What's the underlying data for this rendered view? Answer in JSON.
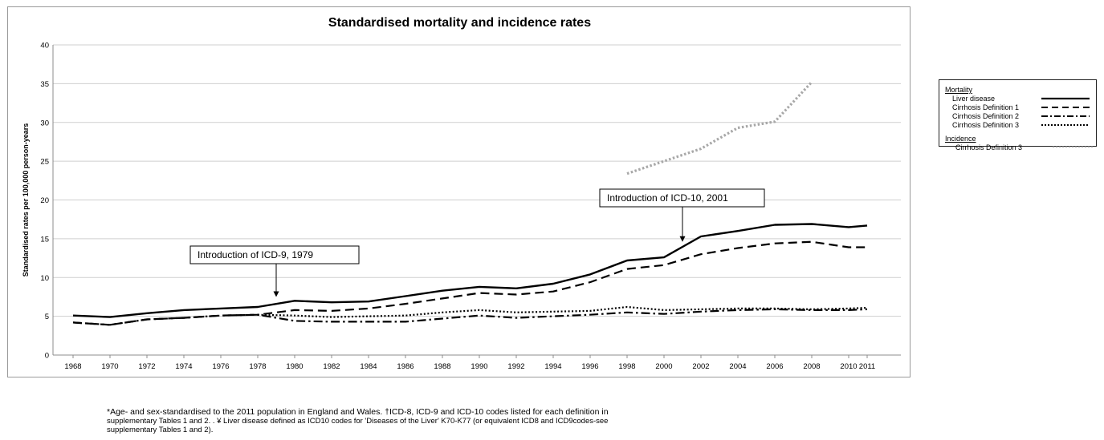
{
  "chart_data": {
    "type": "line",
    "title": "Standardised mortality and incidence rates",
    "ylabel": "Standardised rates per 100,000 person-years",
    "xlabel": "",
    "ylim": [
      0,
      40
    ],
    "yticks": [
      0,
      5,
      10,
      15,
      20,
      25,
      30,
      35,
      40
    ],
    "categories": [
      "1968",
      "1970",
      "1972",
      "1974",
      "1976",
      "1978",
      "1980",
      "1982",
      "1984",
      "1986",
      "1988",
      "1990",
      "1992",
      "1994",
      "1996",
      "1998",
      "2000",
      "2002",
      "2004",
      "2006",
      "2008",
      "2010",
      "2011"
    ],
    "grid": "horizontal",
    "legend_placement": "right",
    "series": [
      {
        "name": "Liver disease",
        "group": "Mortality",
        "style": "solid",
        "color": "#000000",
        "values": [
          5.1,
          4.9,
          5.4,
          5.8,
          6.0,
          6.2,
          7.0,
          6.8,
          6.9,
          7.6,
          8.3,
          8.8,
          8.6,
          9.2,
          10.4,
          12.2,
          12.6,
          15.3,
          16.0,
          16.8,
          16.9,
          16.5,
          16.7
        ]
      },
      {
        "name": "Cirrhosis Definition 1",
        "group": "Mortality",
        "style": "dashed",
        "color": "#000000",
        "values": [
          4.2,
          3.9,
          4.6,
          4.8,
          5.1,
          5.2,
          5.8,
          5.7,
          6.0,
          6.6,
          7.3,
          8.0,
          7.8,
          8.2,
          9.4,
          11.1,
          11.6,
          13.0,
          13.8,
          14.4,
          14.6,
          13.9,
          13.9
        ]
      },
      {
        "name": "Cirrhosis Definition 2",
        "group": "Mortality",
        "style": "dashdot",
        "color": "#000000",
        "values": [
          4.2,
          3.9,
          4.6,
          4.8,
          5.1,
          5.2,
          4.4,
          4.3,
          4.3,
          4.3,
          4.7,
          5.1,
          4.8,
          5.0,
          5.2,
          5.5,
          5.3,
          5.6,
          5.8,
          5.9,
          5.8,
          5.8,
          5.9
        ]
      },
      {
        "name": "Cirrhosis Definition 3",
        "group": "Mortality",
        "style": "dotted",
        "color": "#000000",
        "values": [
          null,
          null,
          null,
          null,
          null,
          5.2,
          5.1,
          4.9,
          5.0,
          5.1,
          5.5,
          5.8,
          5.5,
          5.6,
          5.7,
          6.2,
          5.8,
          5.9,
          6.0,
          6.0,
          5.9,
          6.0,
          6.1
        ]
      },
      {
        "name": "Cirrhosis Definition 3",
        "group": "Incidence",
        "style": "dotted-thick",
        "color": "#a8a8a8",
        "values": [
          null,
          null,
          null,
          null,
          null,
          null,
          null,
          null,
          null,
          null,
          null,
          null,
          null,
          null,
          null,
          23.4,
          25.0,
          26.6,
          29.3,
          30.1,
          35.2,
          null,
          null
        ]
      }
    ],
    "annotations": [
      {
        "text": "Introduction of ICD-9, 1979",
        "x": 1979,
        "y_arrow_tip": 7.5
      },
      {
        "text": "Introduction of ICD-10, 2001",
        "x": 2001,
        "y_arrow_tip": 14.6
      }
    ]
  },
  "legend": {
    "mortality_heading": "Mortality",
    "incidence_heading": "Incidence",
    "items": [
      "Liver disease",
      "Cirrhosis Definition 1",
      "Cirrhosis Definition 2",
      "Cirrhosis Definition 3"
    ],
    "incidence_items": [
      "Cirrhosis Definition 3"
    ]
  },
  "footnote": {
    "line1": "*Age- and sex-standardised to the 2011 population in England and Wales. †ICD-8, ICD-9 and ICD-10 codes listed for each definition in",
    "line2": "supplementary Tables 1 and 2. . ¥ Liver disease defined as ICD10 codes for 'Diseases of the Liver' K70-K77 (or equivalent ICD8 and ICD9codes-see",
    "line3": "supplementary Tables 1 and 2)."
  }
}
